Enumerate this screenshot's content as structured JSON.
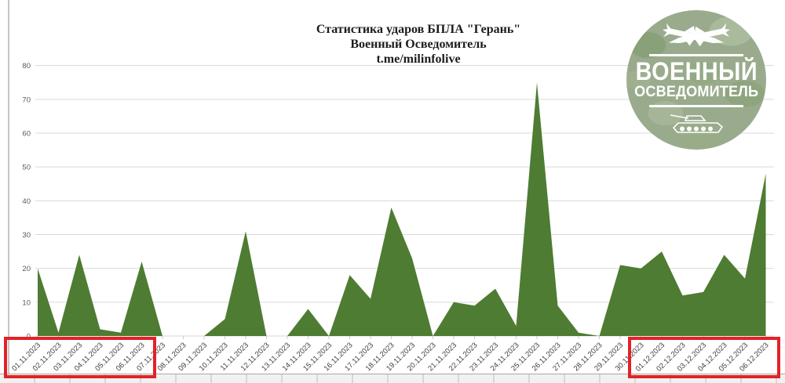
{
  "chart_data": {
    "type": "area",
    "title": "Статистика ударов БПЛА \"Герань\"",
    "subtitle": "Военный Осведомитель",
    "source": "t.me/milinfolive",
    "categories": [
      "01.11.2023",
      "02.11.2023",
      "03.11.2023",
      "04.11.2023",
      "05.11.2023",
      "06.11.2023",
      "07.11.2023",
      "08.11.2023",
      "09.11.2023",
      "10.11.2023",
      "11.11.2023",
      "12.11.2023",
      "13.11.2023",
      "14.11.2023",
      "15.11.2023",
      "16.11.2023",
      "17.11.2023",
      "18.11.2023",
      "19.11.2023",
      "20.11.2023",
      "21.11.2023",
      "22.11.2023",
      "23.11.2023",
      "24.11.2023",
      "25.11.2023",
      "26.11.2023",
      "27.11.2023",
      "28.11.2023",
      "29.11.2023",
      "30.11.2023",
      "01.12.2023",
      "02.12.2023",
      "03.12.2023",
      "04.12.2023",
      "05.12.2023",
      "06.12.2023"
    ],
    "values": [
      20,
      1,
      24,
      2,
      1,
      22,
      0,
      0,
      0,
      5,
      31,
      0,
      0,
      8,
      0,
      18,
      11,
      38,
      23,
      0,
      10,
      9,
      14,
      3,
      75,
      9,
      1,
      0,
      21,
      20,
      25,
      12,
      13,
      24,
      17,
      48
    ],
    "xlabel": "",
    "ylabel": "",
    "ylim": [
      0,
      80
    ],
    "ytick_step": 10,
    "grid": true,
    "legend": "none",
    "area_color": "#4e7c32",
    "gridline_color": "#d9d9d9",
    "y_label_color": "#595959",
    "x_label_color": "#404040",
    "highlights": [
      {
        "from": "01.11.2023",
        "to": "06.11.2023",
        "color": "#e32227"
      },
      {
        "from": "01.12.2023",
        "to": "06.12.2023",
        "color": "#e32227"
      }
    ]
  },
  "logo": {
    "line1": "ВОЕННЫЙ",
    "line2": "ОСВЕДОМИТЕЛЬ",
    "top_icon": "crossed-missiles",
    "bottom_icon": "tank",
    "bg_color": "#96a989",
    "text_color": "#ffffff"
  }
}
